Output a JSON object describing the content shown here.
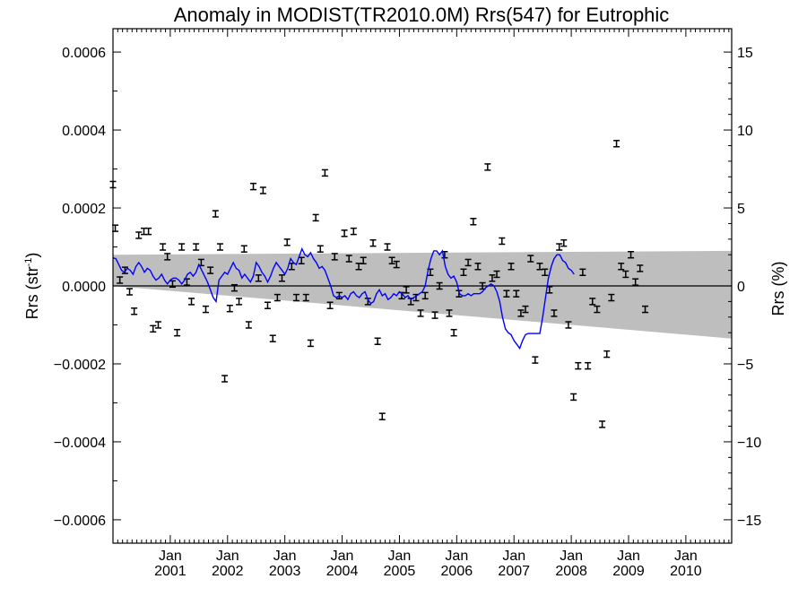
{
  "chart_data": {
    "type": "scatter",
    "title": "Anomaly in MODIST(TR2010.0M) Rrs(547) for Eutrophic",
    "ylabel": "Rrs (str",
    "ylabel_sup": "-1",
    "ylabel_close": ")",
    "y2label": "Rrs (%)",
    "xlim": [
      2000.0,
      2010.8
    ],
    "ylim": [
      -0.00066,
      0.00066
    ],
    "y2lim": [
      -16.5,
      16.5
    ],
    "x_ticks": [
      {
        "x": 2001.0,
        "top": "Jan",
        "bottom": "2001"
      },
      {
        "x": 2002.0,
        "top": "Jan",
        "bottom": "2002"
      },
      {
        "x": 2003.0,
        "top": "Jan",
        "bottom": "2003"
      },
      {
        "x": 2004.0,
        "top": "Jan",
        "bottom": "2004"
      },
      {
        "x": 2005.0,
        "top": "Jan",
        "bottom": "2005"
      },
      {
        "x": 2006.0,
        "top": "Jan",
        "bottom": "2006"
      },
      {
        "x": 2007.0,
        "top": "Jan",
        "bottom": "2007"
      },
      {
        "x": 2008.0,
        "top": "Jan",
        "bottom": "2008"
      },
      {
        "x": 2009.0,
        "top": "Jan",
        "bottom": "2009"
      },
      {
        "x": 2010.0,
        "top": "Jan",
        "bottom": "2010"
      }
    ],
    "y_ticks": [
      {
        "value": 0.0006,
        "label": "0.0006"
      },
      {
        "value": 0.0004,
        "label": "0.0004"
      },
      {
        "value": 0.0002,
        "label": "0.0002"
      },
      {
        "value": 0.0,
        "label": "0.0000"
      },
      {
        "value": -0.0002,
        "label": "−0.0002"
      },
      {
        "value": -0.0004,
        "label": "−0.0004"
      },
      {
        "value": -0.0006,
        "label": "−0.0006"
      }
    ],
    "y2_ticks": [
      {
        "value": 15,
        "label": "15"
      },
      {
        "value": 10,
        "label": "10"
      },
      {
        "value": 5,
        "label": "5"
      },
      {
        "value": 0,
        "label": "0"
      },
      {
        "value": -5,
        "label": "−5"
      },
      {
        "value": -10,
        "label": "−10"
      },
      {
        "value": -15,
        "label": "−15"
      }
    ],
    "band": {
      "upper": [
        [
          2000.0,
          8e-05
        ],
        [
          2010.8,
          9e-05
        ]
      ],
      "lower": [
        [
          2000.0,
          0.0
        ],
        [
          2010.8,
          -0.000135
        ]
      ],
      "color": "#bebebe"
    },
    "zero_line": 0.0,
    "line_color": "#0000ff",
    "errorbar_color": "#000000",
    "errorbar_halfwidth": 8e-06,
    "points": [
      [
        2000.0,
        0.00026
      ],
      [
        2000.04,
        0.000148
      ],
      [
        2000.12,
        1.5e-05
      ],
      [
        2000.21,
        4e-05
      ],
      [
        2000.29,
        -1.5e-05
      ],
      [
        2000.37,
        -6.5e-05
      ],
      [
        2000.45,
        0.00013
      ],
      [
        2000.54,
        0.00014
      ],
      [
        2000.62,
        0.00014
      ],
      [
        2000.7,
        -0.00011
      ],
      [
        2000.79,
        -0.0001
      ],
      [
        2000.87,
        0.0001
      ],
      [
        2000.95,
        7.5e-05
      ],
      [
        2001.04,
        5e-06
      ],
      [
        2001.12,
        -0.00012
      ],
      [
        2001.2,
        0.0001
      ],
      [
        2001.29,
        1e-05
      ],
      [
        2001.37,
        -4e-05
      ],
      [
        2001.45,
        0.0001
      ],
      [
        2001.54,
        6e-05
      ],
      [
        2001.62,
        -6e-05
      ],
      [
        2001.7,
        4e-05
      ],
      [
        2001.79,
        0.000185
      ],
      [
        2001.87,
        0.0001
      ],
      [
        2001.95,
        -0.000238
      ],
      [
        2002.04,
        -5.8e-05
      ],
      [
        2002.12,
        -5e-06
      ],
      [
        2002.2,
        -4e-05
      ],
      [
        2002.29,
        9.5e-05
      ],
      [
        2002.37,
        -0.0001
      ],
      [
        2002.45,
        0.000255
      ],
      [
        2002.54,
        2e-05
      ],
      [
        2002.62,
        0.000245
      ],
      [
        2002.7,
        -5e-05
      ],
      [
        2002.79,
        -0.000135
      ],
      [
        2002.87,
        -3e-05
      ],
      [
        2002.95,
        2e-05
      ],
      [
        2003.04,
        0.000112
      ],
      [
        2003.12,
        5e-05
      ],
      [
        2003.2,
        -3e-05
      ],
      [
        2003.29,
        6.5e-05
      ],
      [
        2003.37,
        -3e-05
      ],
      [
        2003.45,
        -0.000147
      ],
      [
        2003.54,
        0.000175
      ],
      [
        2003.62,
        9.5e-05
      ],
      [
        2003.7,
        0.00029
      ],
      [
        2003.79,
        -5e-05
      ],
      [
        2003.87,
        7.5e-05
      ],
      [
        2003.95,
        -2.5e-05
      ],
      [
        2004.04,
        0.000135
      ],
      [
        2004.12,
        7e-05
      ],
      [
        2004.2,
        0.00014
      ],
      [
        2004.29,
        5e-05
      ],
      [
        2004.37,
        6.5e-05
      ],
      [
        2004.45,
        -4e-05
      ],
      [
        2004.54,
        0.00011
      ],
      [
        2004.62,
        -0.000142
      ],
      [
        2004.7,
        -0.000335
      ],
      [
        2004.79,
        0.0001
      ],
      [
        2004.87,
        6.5e-05
      ],
      [
        2004.95,
        5.5e-05
      ],
      [
        2005.04,
        -2.5e-05
      ],
      [
        2005.12,
        -1e-05
      ],
      [
        2005.2,
        -4e-05
      ],
      [
        2005.29,
        -3e-05
      ],
      [
        2005.37,
        -7e-05
      ],
      [
        2005.45,
        -2.5e-05
      ],
      [
        2005.54,
        3.5e-05
      ],
      [
        2005.62,
        -7.5e-05
      ],
      [
        2005.7,
        0.0
      ],
      [
        2005.79,
        8e-05
      ],
      [
        2005.87,
        -7e-05
      ],
      [
        2005.95,
        -0.00012
      ],
      [
        2006.04,
        -2e-05
      ],
      [
        2006.12,
        3.5e-05
      ],
      [
        2006.2,
        6e-05
      ],
      [
        2006.29,
        0.000165
      ],
      [
        2006.37,
        5e-05
      ],
      [
        2006.45,
        0.0
      ],
      [
        2006.54,
        0.000305
      ],
      [
        2006.62,
        2e-05
      ],
      [
        2006.7,
        3e-05
      ],
      [
        2006.79,
        0.000115
      ],
      [
        2006.87,
        -2e-05
      ],
      [
        2006.95,
        5e-05
      ],
      [
        2007.04,
        -2e-05
      ],
      [
        2007.12,
        -7e-05
      ],
      [
        2007.2,
        -6e-05
      ],
      [
        2007.29,
        7e-05
      ],
      [
        2007.37,
        -0.00019
      ],
      [
        2007.45,
        5e-05
      ],
      [
        2007.54,
        3.5e-05
      ],
      [
        2007.62,
        -1e-05
      ],
      [
        2007.7,
        -7e-05
      ],
      [
        2007.79,
        0.0001
      ],
      [
        2007.87,
        0.00011
      ],
      [
        2007.95,
        -0.0001
      ],
      [
        2008.04,
        -0.000285
      ],
      [
        2008.12,
        -0.000205
      ],
      [
        2008.2,
        3.5e-05
      ],
      [
        2008.29,
        -0.000205
      ],
      [
        2008.37,
        -4e-05
      ],
      [
        2008.45,
        -6e-05
      ],
      [
        2008.54,
        -0.000355
      ],
      [
        2008.62,
        -0.000175
      ],
      [
        2008.7,
        -3e-05
      ],
      [
        2008.79,
        0.000365
      ],
      [
        2008.87,
        5e-05
      ],
      [
        2008.95,
        3e-05
      ],
      [
        2009.04,
        8e-05
      ],
      [
        2009.12,
        1e-05
      ],
      [
        2009.2,
        4.5e-05
      ],
      [
        2009.29,
        -6e-05
      ]
    ],
    "smooth_line": [
      [
        2000.0,
        7.2e-05
      ],
      [
        2000.05,
        7e-05
      ],
      [
        2000.1,
        5.5e-05
      ],
      [
        2000.15,
        4e-05
      ],
      [
        2000.2,
        3.5e-05
      ],
      [
        2000.25,
        4.5e-05
      ],
      [
        2000.3,
        4e-05
      ],
      [
        2000.35,
        3e-05
      ],
      [
        2000.4,
        5e-05
      ],
      [
        2000.45,
        6e-05
      ],
      [
        2000.5,
        5e-05
      ],
      [
        2000.55,
        3.5e-05
      ],
      [
        2000.6,
        4.5e-05
      ],
      [
        2000.65,
        4e-05
      ],
      [
        2000.7,
        2.5e-05
      ],
      [
        2000.75,
        1.5e-05
      ],
      [
        2000.8,
        2e-05
      ],
      [
        2000.85,
        3e-05
      ],
      [
        2000.9,
        1.5e-05
      ],
      [
        2000.95,
        5e-06
      ],
      [
        2001.0,
        1.5e-05
      ],
      [
        2001.05,
        2e-05
      ],
      [
        2001.1,
        2e-05
      ],
      [
        2001.15,
        1.5e-05
      ],
      [
        2001.2,
        5e-06
      ],
      [
        2001.25,
        1.5e-05
      ],
      [
        2001.3,
        3e-05
      ],
      [
        2001.35,
        3.5e-05
      ],
      [
        2001.4,
        2.5e-05
      ],
      [
        2001.45,
        3.5e-05
      ],
      [
        2001.5,
        5.5e-05
      ],
      [
        2001.55,
        4e-05
      ],
      [
        2001.6,
        2.5e-05
      ],
      [
        2001.65,
        1e-05
      ],
      [
        2001.7,
        -1e-05
      ],
      [
        2001.75,
        -3e-05
      ],
      [
        2001.8,
        -4e-05
      ],
      [
        2001.85,
        1.5e-05
      ],
      [
        2001.9,
        2.5e-05
      ],
      [
        2001.95,
        3.5e-05
      ],
      [
        2002.0,
        3e-05
      ],
      [
        2002.05,
        4.5e-05
      ],
      [
        2002.1,
        6e-05
      ],
      [
        2002.15,
        4.5e-05
      ],
      [
        2002.2,
        4e-05
      ],
      [
        2002.25,
        2e-05
      ],
      [
        2002.3,
        3e-05
      ],
      [
        2002.35,
        2e-05
      ],
      [
        2002.4,
        1e-05
      ],
      [
        2002.45,
        2.5e-05
      ],
      [
        2002.5,
        6e-05
      ],
      [
        2002.55,
        5e-05
      ],
      [
        2002.6,
        3.5e-05
      ],
      [
        2002.65,
        2.5e-05
      ],
      [
        2002.7,
        1e-05
      ],
      [
        2002.75,
        2.5e-05
      ],
      [
        2002.8,
        4.5e-05
      ],
      [
        2002.85,
        6e-05
      ],
      [
        2002.9,
        5e-05
      ],
      [
        2002.95,
        4e-05
      ],
      [
        2003.0,
        3e-05
      ],
      [
        2003.05,
        4.5e-05
      ],
      [
        2003.1,
        7e-05
      ],
      [
        2003.15,
        6e-05
      ],
      [
        2003.2,
        5.5e-05
      ],
      [
        2003.25,
        7.5e-05
      ],
      [
        2003.3,
        9.5e-05
      ],
      [
        2003.35,
        8e-05
      ],
      [
        2003.4,
        7.5e-05
      ],
      [
        2003.45,
        8.5e-05
      ],
      [
        2003.5,
        7e-05
      ],
      [
        2003.55,
        6e-05
      ],
      [
        2003.6,
        4.5e-05
      ],
      [
        2003.65,
        5e-05
      ],
      [
        2003.7,
        4e-05
      ],
      [
        2003.75,
        2e-05
      ],
      [
        2003.8,
        0.0
      ],
      [
        2003.85,
        -2.5e-05
      ],
      [
        2003.9,
        -3e-05
      ],
      [
        2003.95,
        -2.5e-05
      ],
      [
        2004.0,
        -3e-05
      ],
      [
        2004.05,
        -2.5e-05
      ],
      [
        2004.1,
        -3.5e-05
      ],
      [
        2004.15,
        -2e-05
      ],
      [
        2004.2,
        -1.5e-05
      ],
      [
        2004.25,
        -2.5e-05
      ],
      [
        2004.3,
        -3e-05
      ],
      [
        2004.35,
        -2e-05
      ],
      [
        2004.4,
        -1.5e-05
      ],
      [
        2004.45,
        -3.5e-05
      ],
      [
        2004.5,
        -4.5e-05
      ],
      [
        2004.55,
        -4e-05
      ],
      [
        2004.6,
        -2e-05
      ],
      [
        2004.65,
        -1e-05
      ],
      [
        2004.7,
        -2.5e-05
      ],
      [
        2004.75,
        -2e-05
      ],
      [
        2004.8,
        -3.5e-05
      ],
      [
        2004.85,
        -3e-05
      ],
      [
        2004.9,
        -2e-05
      ],
      [
        2004.95,
        -2.5e-05
      ],
      [
        2005.0,
        -1.5e-05
      ],
      [
        2005.05,
        -2e-05
      ],
      [
        2005.1,
        -3e-05
      ],
      [
        2005.15,
        -2.5e-05
      ],
      [
        2005.2,
        -3.5e-05
      ],
      [
        2005.25,
        -3e-05
      ],
      [
        2005.3,
        -2.5e-05
      ],
      [
        2005.35,
        -2e-05
      ],
      [
        2005.4,
        -1.5e-05
      ],
      [
        2005.45,
        0.0
      ],
      [
        2005.5,
        4e-05
      ],
      [
        2005.55,
        7e-05
      ],
      [
        2005.6,
        9e-05
      ],
      [
        2005.65,
        9e-05
      ],
      [
        2005.7,
        8e-05
      ],
      [
        2005.75,
        9e-05
      ],
      [
        2005.8,
        5e-05
      ],
      [
        2005.85,
        3e-05
      ],
      [
        2005.9,
        2e-05
      ],
      [
        2005.95,
        2.5e-05
      ],
      [
        2006.0,
        1e-05
      ],
      [
        2006.05,
        -2e-05
      ],
      [
        2006.1,
        -2.5e-05
      ],
      [
        2006.15,
        -2.5e-05
      ],
      [
        2006.2,
        -2e-05
      ],
      [
        2006.25,
        -2.5e-05
      ],
      [
        2006.3,
        -2e-05
      ],
      [
        2006.35,
        -2e-05
      ],
      [
        2006.4,
        -2e-05
      ],
      [
        2006.45,
        -1.5e-05
      ],
      [
        2006.5,
        -5e-06
      ],
      [
        2006.55,
        0.0
      ],
      [
        2006.6,
        5e-06
      ],
      [
        2006.65,
        0.0
      ],
      [
        2006.7,
        -1.5e-05
      ],
      [
        2006.75,
        -4e-05
      ],
      [
        2006.8,
        -8e-05
      ],
      [
        2006.85,
        -0.00011
      ],
      [
        2006.9,
        -0.00012
      ],
      [
        2006.95,
        -0.000125
      ],
      [
        2007.0,
        -0.00014
      ],
      [
        2007.05,
        -0.00015
      ],
      [
        2007.1,
        -0.00016
      ],
      [
        2007.15,
        -0.00014
      ],
      [
        2007.2,
        -0.000125
      ],
      [
        2007.25,
        -0.000122
      ],
      [
        2007.3,
        -0.000122
      ],
      [
        2007.35,
        -0.000122
      ],
      [
        2007.4,
        -0.000122
      ],
      [
        2007.45,
        -0.000122
      ],
      [
        2007.5,
        -8e-05
      ],
      [
        2007.55,
        -3e-05
      ],
      [
        2007.6,
        2e-05
      ],
      [
        2007.65,
        5e-05
      ],
      [
        2007.7,
        7e-05
      ],
      [
        2007.75,
        8e-05
      ],
      [
        2007.8,
        8e-05
      ],
      [
        2007.85,
        6.5e-05
      ],
      [
        2007.9,
        6e-05
      ],
      [
        2007.95,
        4.5e-05
      ],
      [
        2008.0,
        4e-05
      ],
      [
        2008.05,
        3e-05
      ]
    ]
  }
}
